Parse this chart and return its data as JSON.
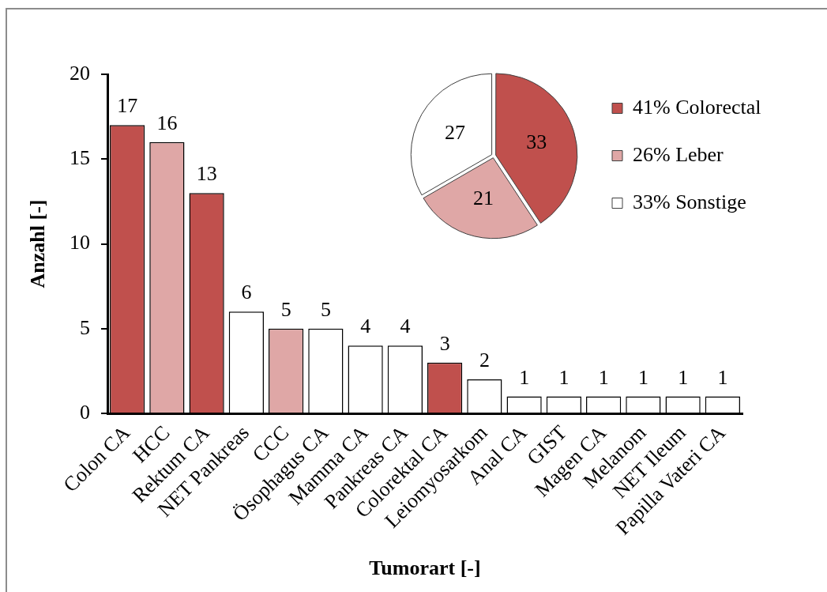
{
  "chart_data": [
    {
      "type": "bar",
      "xlabel": "Tumorart [-]",
      "ylabel": "Anzahl [-]",
      "categories": [
        "Colon CA",
        "HCC",
        "Rektum CA",
        "NET Pankreas",
        "CCC",
        "Ösophagus CA",
        "Mamma CA",
        "Pankreas CA",
        "Colorektal CA",
        "Leiomyosarkom",
        "Anal CA",
        "GIST",
        "Magen CA",
        "Melanom",
        "NET Ileum",
        "Papilla Vateri CA"
      ],
      "values": [
        17,
        16,
        13,
        6,
        5,
        5,
        4,
        4,
        3,
        2,
        1,
        1,
        1,
        1,
        1,
        1
      ],
      "colors": [
        "#c0504d",
        "#dfa7a6",
        "#c0504d",
        "#ffffff",
        "#dfa7a6",
        "#ffffff",
        "#ffffff",
        "#ffffff",
        "#c0504d",
        "#ffffff",
        "#ffffff",
        "#ffffff",
        "#ffffff",
        "#ffffff",
        "#ffffff",
        "#ffffff"
      ],
      "ylim": [
        0,
        20
      ],
      "yticks": [
        0,
        5,
        10,
        15,
        20
      ],
      "data_labels": true
    },
    {
      "type": "pie",
      "categories": [
        "41% Colorectal",
        "26% Leber",
        "33% Sonstige"
      ],
      "values": [
        33,
        21,
        27
      ],
      "colors": [
        "#c0504d",
        "#dfa7a6",
        "#ffffff"
      ],
      "data_labels": true,
      "legend": "right"
    }
  ]
}
